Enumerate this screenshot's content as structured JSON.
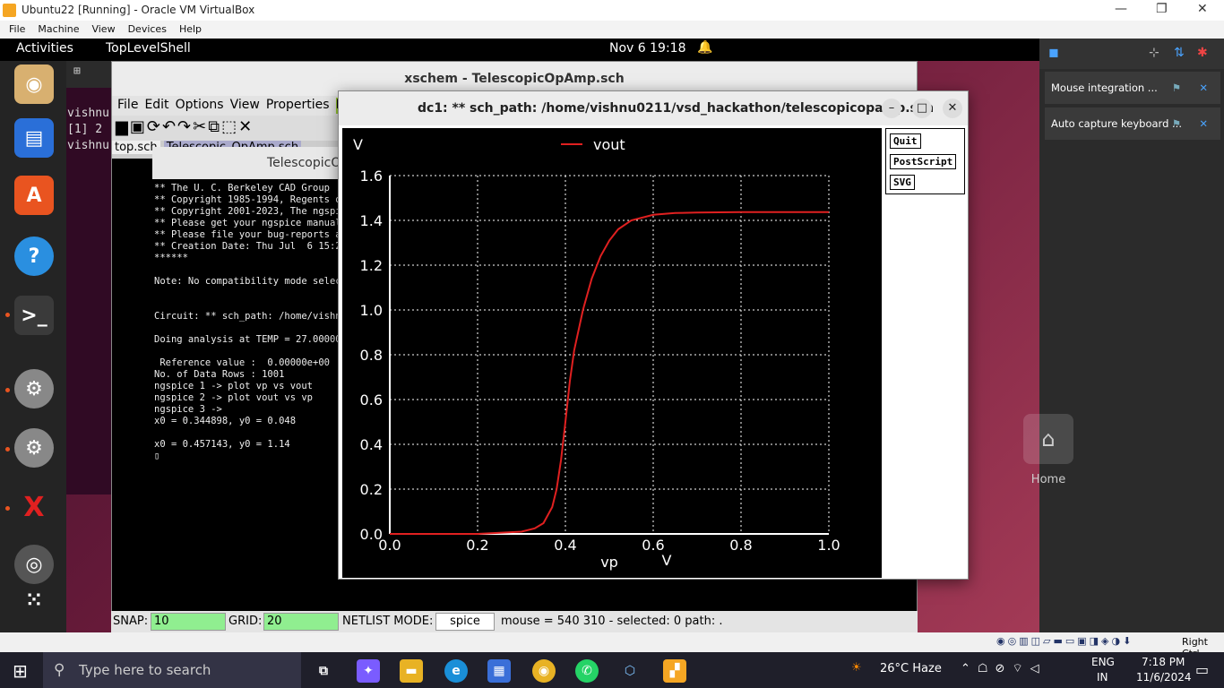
{
  "vbox": {
    "title": "Ubuntu22 [Running] - Oracle VM VirtualBox",
    "menu": [
      "File",
      "Machine",
      "View",
      "Devices",
      "Help"
    ],
    "status_right": "Right Ctrl"
  },
  "gnome": {
    "activities": "Activities",
    "app": "TopLevelShell",
    "clock": "Nov 6  19:18"
  },
  "terminal_lines": [
    "vishnu",
    "[1] 2",
    "vishnu"
  ],
  "xschem": {
    "title": "xschem - TelescopicOpAmp.sch",
    "menu": [
      "File",
      "Edit",
      "Options",
      "View",
      "Properties",
      "La"
    ],
    "tabs": [
      "top.sch",
      "Telescopic_OpAmp.sch"
    ]
  },
  "ngspice": {
    "title": "TelescopicO",
    "lines": [
      "** The U. C. Berkeley CAD Group",
      "** Copyright 1985-1994, Regents of",
      "** Copyright 2001-2023, The ngspice",
      "** Please get your ngspice manual f",
      "** Please file your bug-reports at",
      "** Creation Date: Thu Jul  6 15:24:",
      "******",
      "",
      "Note: No compatibility mode selecte",
      "",
      "",
      "Circuit: ** sch_path: /home/vishnu0",
      "",
      "Doing analysis at TEMP = 27.000000",
      "",
      " Reference value :  0.00000e+00",
      "No. of Data Rows : 1001",
      "ngspice 1 -> plot vp vs vout",
      "ngspice 2 -> plot vout vs vp",
      "ngspice 3 ->",
      "x0 = 0.344898, y0 = 0.048",
      "",
      "x0 = 0.457143, y0 = 1.14",
      "▯"
    ]
  },
  "status": {
    "snap_label": "SNAP:",
    "snap_value": "10",
    "grid_label": "GRID:",
    "grid_value": "20",
    "netlist_label": "NETLIST MODE:",
    "netlist_value": "spice",
    "mouse": "mouse = 540 310 - selected: 0 path: ."
  },
  "plot_window": {
    "title": "dc1: ** sch_path: /home/vishnu0211/vsd_hackathon/telescopicopamp.sch",
    "buttons": [
      "Quit",
      "PostScript",
      "SVG"
    ]
  },
  "chart_data": {
    "type": "line",
    "ylabel": "V",
    "xlabel": "vp",
    "xunit": "V",
    "xlim": [
      0.0,
      1.0
    ],
    "ylim": [
      0.0,
      1.6
    ],
    "xticks": [
      "0.0",
      "0.2",
      "0.4",
      "0.6",
      "0.8",
      "1.0"
    ],
    "yticks": [
      "0.0",
      "0.2",
      "0.4",
      "0.6",
      "0.8",
      "1.0",
      "1.2",
      "1.4",
      "1.6"
    ],
    "grid": true,
    "legend": "top-center",
    "series": [
      {
        "name": "vout",
        "color": "#e02020",
        "x": [
          0.0,
          0.2,
          0.3,
          0.33,
          0.35,
          0.37,
          0.38,
          0.39,
          0.4,
          0.41,
          0.42,
          0.44,
          0.46,
          0.48,
          0.5,
          0.52,
          0.55,
          0.6,
          0.65,
          0.7,
          0.8,
          0.9,
          1.0
        ],
        "y": [
          0.0,
          0.0,
          0.01,
          0.025,
          0.048,
          0.12,
          0.2,
          0.33,
          0.5,
          0.68,
          0.82,
          1.0,
          1.14,
          1.24,
          1.31,
          1.36,
          1.4,
          1.425,
          1.433,
          1.435,
          1.437,
          1.437,
          1.437
        ]
      }
    ]
  },
  "notifications": [
    "Mouse integration ...",
    "Auto capture keyboard ..."
  ],
  "home_label": "Home",
  "taskbar": {
    "search_placeholder": "Type here to search",
    "weather": "26°C  Haze",
    "lang1": "ENG",
    "lang2": "IN",
    "time": "7:18 PM",
    "date": "11/6/2024"
  }
}
